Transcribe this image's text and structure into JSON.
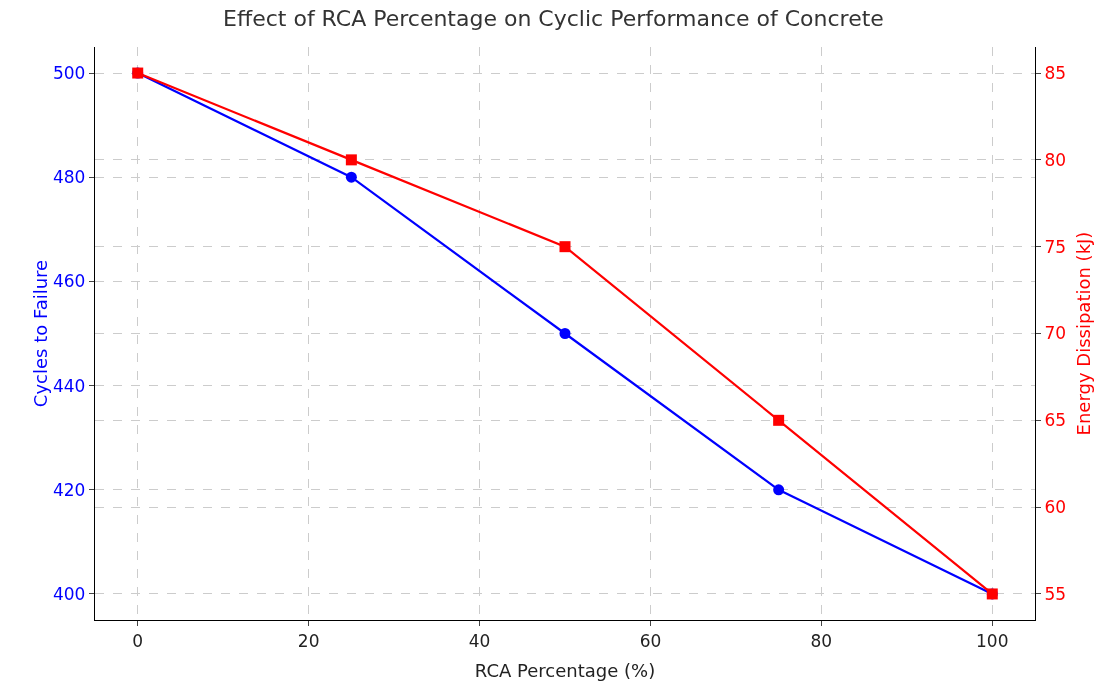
{
  "chart_data": {
    "type": "line",
    "title": "Effect of RCA Percentage on Cyclic Performance of Concrete",
    "xlabel": "RCA Percentage (%)",
    "ylabel": "Cycles to Failure",
    "y2label": "Energy Dissipation (kJ)",
    "x": [
      0,
      25,
      50,
      75,
      100
    ],
    "series": [
      {
        "color": "#0000ff",
        "marker": "circle",
        "values": [
          500,
          480,
          450,
          420,
          400
        ]
      },
      {
        "color": "#ff0000",
        "marker": "square",
        "axis": "y2",
        "values": [
          85,
          80,
          75,
          65,
          55
        ]
      }
    ],
    "xlim": [
      -5,
      105
    ],
    "xticks": [
      0,
      20,
      40,
      60,
      80,
      100
    ],
    "ylim": [
      395,
      505
    ],
    "yticks": [
      400,
      420,
      440,
      460,
      480,
      500
    ],
    "y2lim": [
      53.5,
      86.5
    ],
    "y2ticks": [
      55,
      60,
      65,
      70,
      75,
      80,
      85
    ],
    "grid": true,
    "line_style": "solid"
  }
}
